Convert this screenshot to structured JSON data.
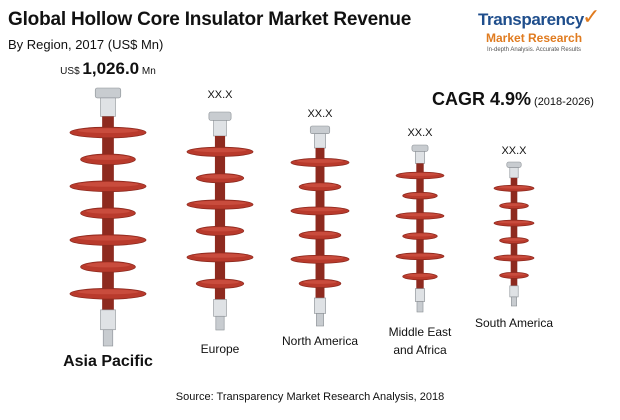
{
  "header": {
    "title": "Global Hollow Core Insulator Market Revenue",
    "subtitle": "By Region, 2017 (US$ Mn)"
  },
  "logo": {
    "name": "Transparency",
    "sub": "Market Research",
    "tagline": "In-depth Analysis. Accurate Results",
    "icon": "check-icon"
  },
  "cagr": {
    "label": "CAGR 4.9%",
    "period": "(2018-2026)"
  },
  "source": "Source: Transparency Market Research Analysis, 2018",
  "colors": {
    "insulator": "#b93a2c",
    "insulator_dark": "#8e2a1f",
    "metal": "#c8ccd0"
  },
  "chart_data": {
    "type": "bar",
    "categories": [
      "Asia Pacific",
      "Europe",
      "North America",
      "Middle East and Africa",
      "South America"
    ],
    "value_labels": [
      {
        "prefix": "US$",
        "value": "1,026.0",
        "suffix": "Mn"
      },
      {
        "prefix": "",
        "value": "XX.X",
        "suffix": ""
      },
      {
        "prefix": "",
        "value": "XX.X",
        "suffix": ""
      },
      {
        "prefix": "",
        "value": "XX.X",
        "suffix": ""
      },
      {
        "prefix": "",
        "value": "XX.X",
        "suffix": ""
      }
    ],
    "values": [
      1026.0,
      null,
      null,
      null,
      null
    ],
    "title": "Global Hollow Core Insulator Market Revenue",
    "subtitle": "By Region, 2017 (US$ Mn)"
  }
}
